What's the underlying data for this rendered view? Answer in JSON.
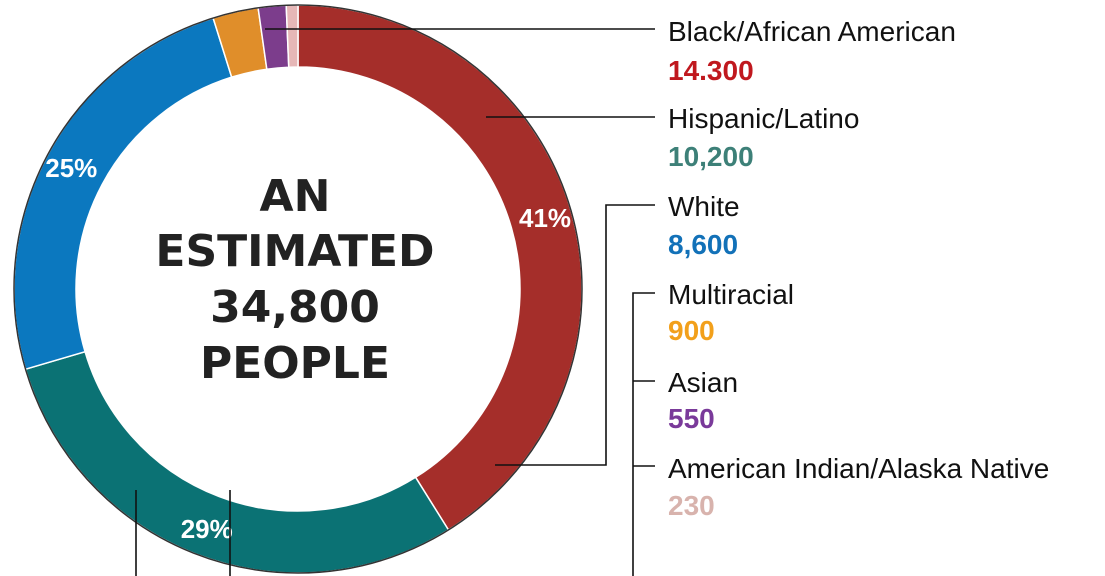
{
  "chart_data": {
    "type": "pie",
    "donut": true,
    "center_text": [
      "AN",
      "ESTIMATED",
      "34,800",
      "PEOPLE"
    ],
    "total_label": "34,800",
    "series": [
      {
        "name": "Black/African American",
        "value_label": "14.300",
        "value": 14300,
        "percent_label": "41%",
        "color": "#a52e2a",
        "value_color": "#c0181e"
      },
      {
        "name": "Hispanic/Latino",
        "value_label": "10,200",
        "value": 10200,
        "percent_label": "29%",
        "color": "#0b7274",
        "value_color": "#3d8078"
      },
      {
        "name": "White",
        "value_label": "8,600",
        "value": 8600,
        "percent_label": "25%",
        "color": "#0b78bf",
        "value_color": "#1271b8"
      },
      {
        "name": "Multiracial",
        "value_label": "900",
        "value": 900,
        "percent_label": "",
        "color": "#e08e2a",
        "value_color": "#f2a01b"
      },
      {
        "name": "Asian",
        "value_label": "550",
        "value": 550,
        "percent_label": "",
        "color": "#7c3d8c",
        "value_color": "#7a3a9a"
      },
      {
        "name": "American Indian/Alaska Native",
        "value_label": "230",
        "value": 230,
        "percent_label": "",
        "color": "#e6b7b7",
        "value_color": "#d8b3ad"
      }
    ]
  }
}
